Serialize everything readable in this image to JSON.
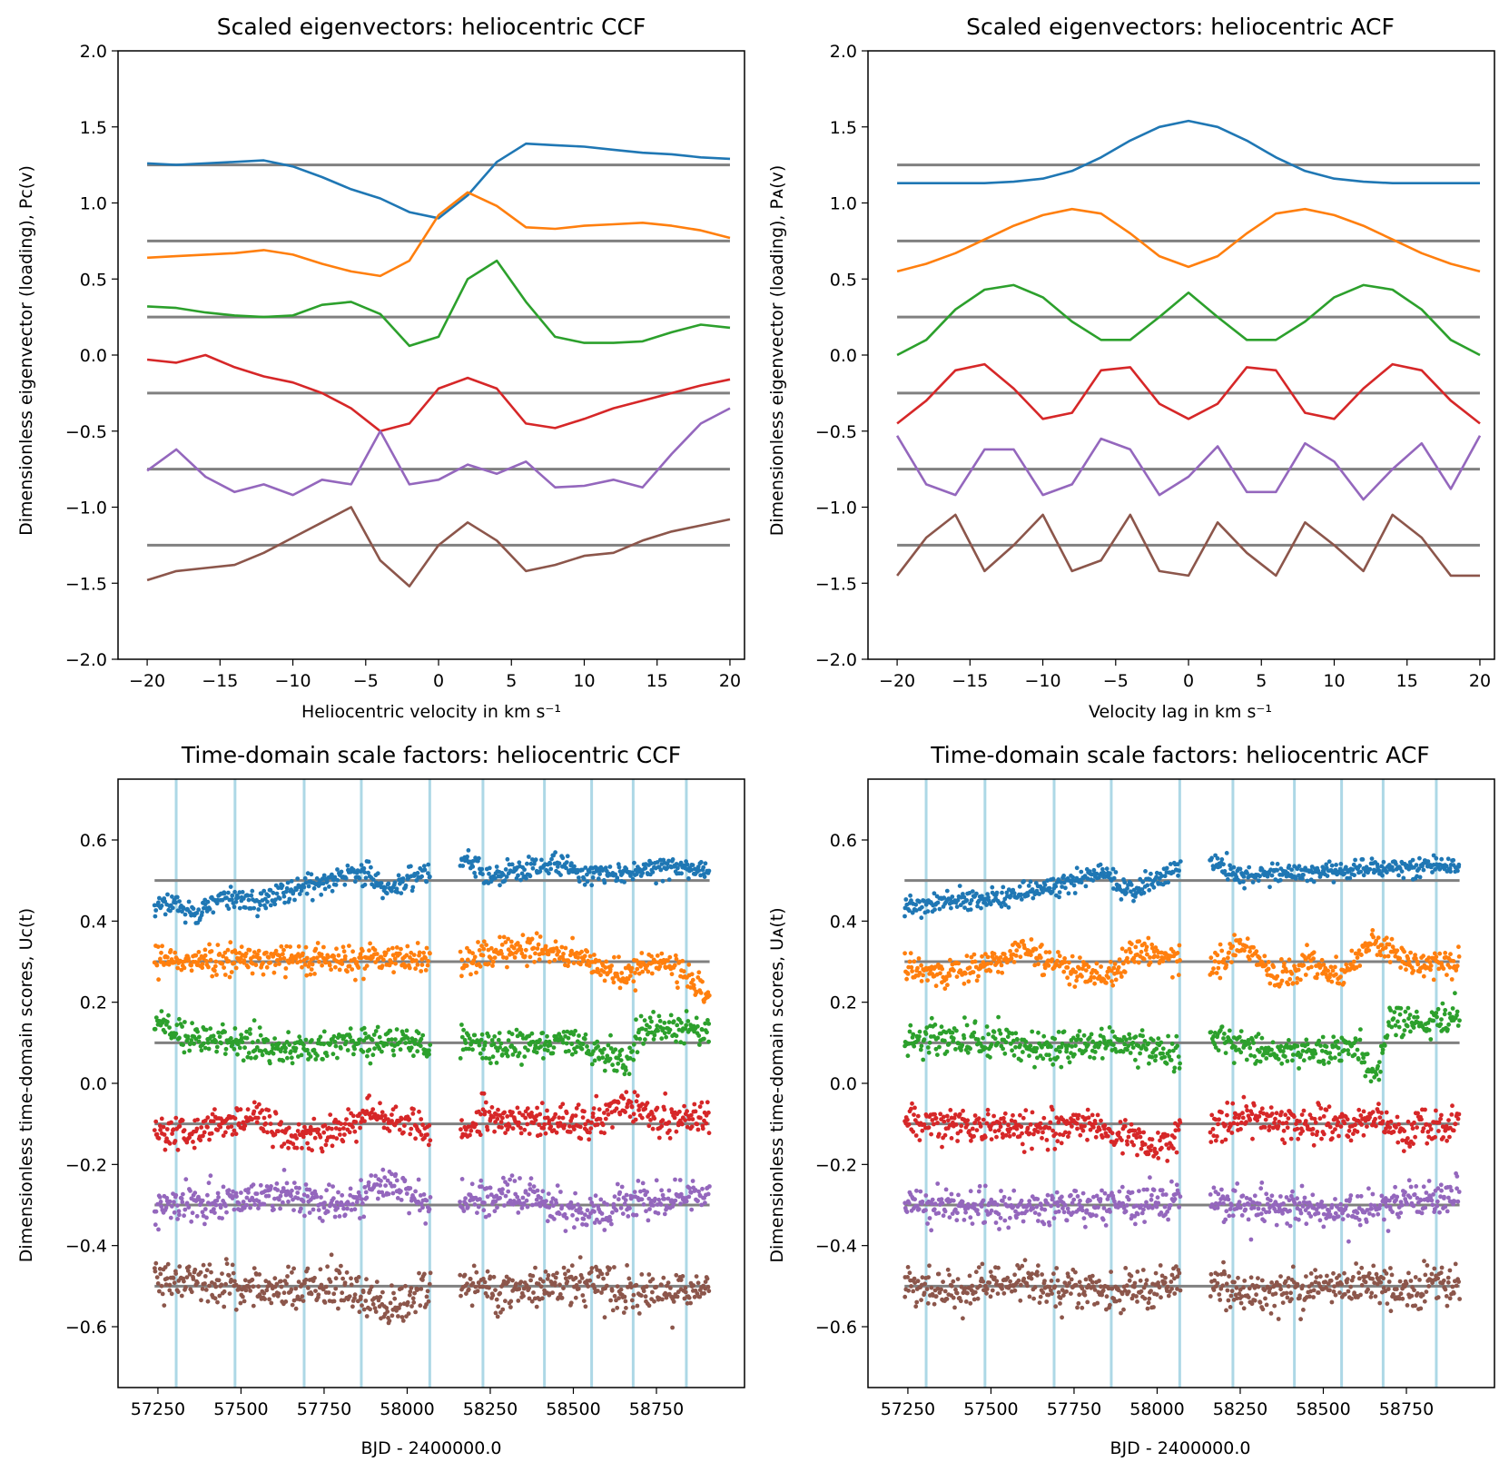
{
  "colors": {
    "series": [
      "#1f77b4",
      "#ff7f0e",
      "#2ca02c",
      "#d62728",
      "#9467bd",
      "#8c564b"
    ],
    "baseline": "#808080",
    "vline": "#add8e6",
    "frame": "#000000"
  },
  "chart_data": [
    {
      "type": "line",
      "title": "Scaled eigenvectors: heliocentric CCF",
      "xlabel": "Heliocentric velocity in km s⁻¹",
      "ylabel": "Dimensionless eigenvector (loading), Pᴄ(v)",
      "xlim": [
        -22,
        21
      ],
      "ylim": [
        -2.0,
        2.0
      ],
      "xticks": [
        -20,
        -15,
        -10,
        -5,
        0,
        5,
        10,
        15,
        20
      ],
      "xtick_labels": [
        "−20",
        "−15",
        "−10",
        "−5",
        "0",
        "5",
        "10",
        "15",
        "20"
      ],
      "yticks": [
        -2.0,
        -1.5,
        -1.0,
        -0.5,
        0.0,
        0.5,
        1.0,
        1.5,
        2.0
      ],
      "ytick_labels": [
        "−2.0",
        "−1.5",
        "−1.0",
        "−0.5",
        "0.0",
        "0.5",
        "1.0",
        "1.5",
        "2.0"
      ],
      "grid": false,
      "baselines": [
        1.25,
        0.75,
        0.25,
        -0.25,
        -0.75,
        -1.25
      ],
      "x": [
        -20,
        -18,
        -16,
        -14,
        -12,
        -10,
        -8,
        -6,
        -4,
        -2,
        0,
        2,
        4,
        6,
        8,
        10,
        12,
        14,
        16,
        18,
        20
      ],
      "series": [
        {
          "values": [
            1.26,
            1.25,
            1.26,
            1.27,
            1.28,
            1.24,
            1.17,
            1.09,
            1.03,
            0.94,
            0.9,
            1.05,
            1.27,
            1.39,
            1.38,
            1.37,
            1.35,
            1.33,
            1.32,
            1.3,
            1.29
          ]
        },
        {
          "values": [
            0.64,
            0.65,
            0.66,
            0.67,
            0.69,
            0.66,
            0.6,
            0.55,
            0.52,
            0.62,
            0.92,
            1.07,
            0.98,
            0.84,
            0.83,
            0.85,
            0.86,
            0.87,
            0.85,
            0.82,
            0.77
          ]
        },
        {
          "values": [
            0.32,
            0.31,
            0.28,
            0.26,
            0.25,
            0.26,
            0.33,
            0.35,
            0.27,
            0.06,
            0.12,
            0.5,
            0.62,
            0.35,
            0.12,
            0.08,
            0.08,
            0.09,
            0.15,
            0.2,
            0.18
          ]
        },
        {
          "values": [
            -0.03,
            -0.05,
            0.0,
            -0.08,
            -0.14,
            -0.18,
            -0.25,
            -0.35,
            -0.5,
            -0.45,
            -0.22,
            -0.15,
            -0.22,
            -0.45,
            -0.48,
            -0.42,
            -0.35,
            -0.3,
            -0.25,
            -0.2,
            -0.16
          ]
        },
        {
          "values": [
            -0.76,
            -0.62,
            -0.8,
            -0.9,
            -0.85,
            -0.92,
            -0.82,
            -0.85,
            -0.5,
            -0.85,
            -0.82,
            -0.72,
            -0.78,
            -0.7,
            -0.87,
            -0.86,
            -0.82,
            -0.87,
            -0.65,
            -0.45,
            -0.35
          ]
        },
        {
          "values": [
            -1.48,
            -1.42,
            -1.4,
            -1.38,
            -1.3,
            -1.2,
            -1.1,
            -1.0,
            -1.35,
            -1.52,
            -1.25,
            -1.1,
            -1.22,
            -1.42,
            -1.38,
            -1.32,
            -1.3,
            -1.22,
            -1.16,
            -1.12,
            -1.08
          ]
        }
      ]
    },
    {
      "type": "line",
      "title": "Scaled eigenvectors: heliocentric ACF",
      "xlabel": "Velocity lag in km s⁻¹",
      "ylabel": "Dimensionless eigenvector (loading), Pᴀ(v)",
      "xlim": [
        -22,
        21
      ],
      "ylim": [
        -2.0,
        2.0
      ],
      "xticks": [
        -20,
        -15,
        -10,
        -5,
        0,
        5,
        10,
        15,
        20
      ],
      "xtick_labels": [
        "−20",
        "−15",
        "−10",
        "−5",
        "0",
        "5",
        "10",
        "15",
        "20"
      ],
      "yticks": [
        -2.0,
        -1.5,
        -1.0,
        -0.5,
        0.0,
        0.5,
        1.0,
        1.5,
        2.0
      ],
      "ytick_labels": [
        "−2.0",
        "−1.5",
        "−1.0",
        "−0.5",
        "0.0",
        "0.5",
        "1.0",
        "1.5",
        "2.0"
      ],
      "grid": false,
      "baselines": [
        1.25,
        0.75,
        0.25,
        -0.25,
        -0.75,
        -1.25
      ],
      "x": [
        -20,
        -18,
        -16,
        -14,
        -12,
        -10,
        -8,
        -6,
        -4,
        -2,
        0,
        2,
        4,
        6,
        8,
        10,
        12,
        14,
        16,
        18,
        20
      ],
      "series": [
        {
          "values": [
            1.13,
            1.13,
            1.13,
            1.13,
            1.14,
            1.16,
            1.21,
            1.3,
            1.41,
            1.5,
            1.54,
            1.5,
            1.41,
            1.3,
            1.21,
            1.16,
            1.14,
            1.13,
            1.13,
            1.13,
            1.13
          ]
        },
        {
          "values": [
            0.55,
            0.6,
            0.67,
            0.76,
            0.85,
            0.92,
            0.96,
            0.93,
            0.8,
            0.65,
            0.58,
            0.65,
            0.8,
            0.93,
            0.96,
            0.92,
            0.85,
            0.76,
            0.67,
            0.6,
            0.55
          ]
        },
        {
          "values": [
            0.0,
            0.1,
            0.3,
            0.43,
            0.46,
            0.38,
            0.22,
            0.1,
            0.1,
            0.25,
            0.41,
            0.25,
            0.1,
            0.1,
            0.22,
            0.38,
            0.46,
            0.43,
            0.3,
            0.1,
            0.0
          ]
        },
        {
          "values": [
            -0.45,
            -0.3,
            -0.1,
            -0.06,
            -0.22,
            -0.42,
            -0.38,
            -0.1,
            -0.08,
            -0.32,
            -0.42,
            -0.32,
            -0.08,
            -0.1,
            -0.38,
            -0.42,
            -0.22,
            -0.06,
            -0.1,
            -0.3,
            -0.45
          ]
        },
        {
          "values": [
            -0.53,
            -0.85,
            -0.92,
            -0.62,
            -0.62,
            -0.92,
            -0.85,
            -0.55,
            -0.62,
            -0.92,
            -0.8,
            -0.6,
            -0.9,
            -0.9,
            -0.58,
            -0.7,
            -0.95,
            -0.75,
            -0.58,
            -0.88,
            -0.53
          ]
        },
        {
          "values": [
            -1.45,
            -1.2,
            -1.05,
            -1.42,
            -1.25,
            -1.05,
            -1.42,
            -1.35,
            -1.05,
            -1.42,
            -1.45,
            -1.1,
            -1.3,
            -1.45,
            -1.1,
            -1.25,
            -1.42,
            -1.05,
            -1.2,
            -1.45,
            -1.45
          ]
        }
      ]
    },
    {
      "type": "scatter",
      "title": "Time-domain scale factors: heliocentric CCF",
      "xlabel": "BJD - 2400000.0",
      "ylabel": "Dimensionless time-domain scores, Uᴄ(t)",
      "xlim": [
        57130,
        59015
      ],
      "ylim": [
        -0.75,
        0.75
      ],
      "xticks": [
        57250,
        57500,
        57750,
        58000,
        58250,
        58500,
        58750
      ],
      "xtick_labels": [
        "57250",
        "57500",
        "57750",
        "58000",
        "58250",
        "58500",
        "58750"
      ],
      "yticks": [
        -0.6,
        -0.4,
        -0.2,
        0.0,
        0.2,
        0.4,
        0.6
      ],
      "ytick_labels": [
        "−0.6",
        "−0.4",
        "−0.2",
        "0.0",
        "0.2",
        "0.4",
        "0.6"
      ],
      "grid": false,
      "baselines": [
        0.5,
        0.3,
        0.1,
        -0.1,
        -0.3,
        -0.5
      ],
      "vlines": [
        57305,
        57482,
        57690,
        57862,
        58068,
        58228,
        58413,
        58555,
        58680,
        58840
      ],
      "observing_seasons": [
        [
          57240,
          58070
        ],
        [
          58160,
          58910
        ]
      ],
      "series": [
        {
          "mean_x": [
            57240,
            57300,
            57350,
            57450,
            57550,
            57650,
            57750,
            57850,
            57950,
            58070,
            58160,
            58250,
            58350,
            58450,
            58550,
            58650,
            58750,
            58910
          ],
          "mean_y": [
            0.43,
            0.45,
            0.42,
            0.46,
            0.45,
            0.48,
            0.5,
            0.52,
            0.48,
            0.53,
            0.56,
            0.51,
            0.53,
            0.54,
            0.52,
            0.52,
            0.53,
            0.53
          ],
          "scatter": 0.015
        },
        {
          "mean_x": [
            57240,
            57400,
            57600,
            57800,
            58000,
            58070,
            58160,
            58300,
            58450,
            58550,
            58650,
            58750,
            58850,
            58910
          ],
          "mean_y": [
            0.3,
            0.3,
            0.31,
            0.3,
            0.31,
            0.3,
            0.29,
            0.33,
            0.33,
            0.3,
            0.27,
            0.3,
            0.25,
            0.21
          ],
          "scatter": 0.018
        },
        {
          "mean_x": [
            57240,
            57300,
            57500,
            57650,
            57800,
            58000,
            58070,
            58160,
            58300,
            58500,
            58600,
            58660,
            58700,
            58800,
            58910
          ],
          "mean_y": [
            0.15,
            0.12,
            0.1,
            0.08,
            0.1,
            0.1,
            0.09,
            0.11,
            0.09,
            0.1,
            0.07,
            0.04,
            0.14,
            0.13,
            0.14
          ],
          "scatter": 0.02
        },
        {
          "mean_x": [
            57240,
            57350,
            57550,
            57650,
            57800,
            57900,
            58070,
            58160,
            58250,
            58400,
            58550,
            58650,
            58750,
            58910
          ],
          "mean_y": [
            -0.12,
            -0.12,
            -0.08,
            -0.13,
            -0.12,
            -0.07,
            -0.12,
            -0.12,
            -0.08,
            -0.1,
            -0.1,
            -0.05,
            -0.08,
            -0.09
          ],
          "scatter": 0.02
        },
        {
          "mean_x": [
            57240,
            57400,
            57600,
            57800,
            57950,
            58070,
            58160,
            58300,
            58450,
            58550,
            58650,
            58750,
            58910
          ],
          "mean_y": [
            -0.3,
            -0.3,
            -0.27,
            -0.3,
            -0.25,
            -0.3,
            -0.28,
            -0.28,
            -0.3,
            -0.33,
            -0.28,
            -0.3,
            -0.27
          ],
          "scatter": 0.022
        },
        {
          "mean_x": [
            57240,
            57400,
            57600,
            57800,
            57950,
            58070,
            58160,
            58300,
            58450,
            58550,
            58650,
            58750,
            58910
          ],
          "mean_y": [
            -0.48,
            -0.49,
            -0.51,
            -0.5,
            -0.56,
            -0.5,
            -0.49,
            -0.52,
            -0.5,
            -0.49,
            -0.51,
            -0.52,
            -0.5
          ],
          "scatter": 0.025
        }
      ]
    },
    {
      "type": "scatter",
      "title": "Time-domain scale factors: heliocentric ACF",
      "xlabel": "BJD - 2400000.0",
      "ylabel": "Dimensionless time-domain scores, Uᴀ(t)",
      "xlim": [
        57130,
        59015
      ],
      "ylim": [
        -0.75,
        0.75
      ],
      "xticks": [
        57250,
        57500,
        57750,
        58000,
        58250,
        58500,
        58750
      ],
      "xtick_labels": [
        "57250",
        "57500",
        "57750",
        "58000",
        "58250",
        "58500",
        "58750"
      ],
      "yticks": [
        -0.6,
        -0.4,
        -0.2,
        0.0,
        0.2,
        0.4,
        0.6
      ],
      "ytick_labels": [
        "−0.6",
        "−0.4",
        "−0.2",
        "0.0",
        "0.2",
        "0.4",
        "0.6"
      ],
      "grid": false,
      "baselines": [
        0.5,
        0.3,
        0.1,
        -0.1,
        -0.3,
        -0.5
      ],
      "vlines": [
        57305,
        57482,
        57690,
        57862,
        58068,
        58228,
        58413,
        58555,
        58680,
        58840
      ],
      "observing_seasons": [
        [
          57240,
          58070
        ],
        [
          58160,
          58910
        ]
      ],
      "series": [
        {
          "mean_x": [
            57240,
            57300,
            57400,
            57550,
            57700,
            57800,
            57850,
            57900,
            58000,
            58070,
            58160,
            58250,
            58400,
            58550,
            58650,
            58750,
            58910
          ],
          "mean_y": [
            0.43,
            0.44,
            0.45,
            0.46,
            0.49,
            0.51,
            0.52,
            0.47,
            0.5,
            0.53,
            0.55,
            0.51,
            0.52,
            0.52,
            0.53,
            0.53,
            0.54
          ],
          "scatter": 0.012
        },
        {
          "mean_x": [
            57240,
            57350,
            57500,
            57600,
            57750,
            57850,
            57950,
            58070,
            58160,
            58250,
            58350,
            58450,
            58550,
            58650,
            58750,
            58910
          ],
          "mean_y": [
            0.28,
            0.27,
            0.3,
            0.33,
            0.28,
            0.26,
            0.33,
            0.3,
            0.27,
            0.35,
            0.26,
            0.3,
            0.26,
            0.35,
            0.3,
            0.29
          ],
          "scatter": 0.018
        },
        {
          "mean_x": [
            57240,
            57400,
            57600,
            57700,
            57850,
            57950,
            58070,
            58160,
            58300,
            58500,
            58600,
            58660,
            58700,
            58800,
            58910
          ],
          "mean_y": [
            0.1,
            0.11,
            0.09,
            0.08,
            0.1,
            0.1,
            0.07,
            0.12,
            0.08,
            0.08,
            0.09,
            0.01,
            0.16,
            0.14,
            0.17
          ],
          "scatter": 0.02
        },
        {
          "mean_x": [
            57240,
            57400,
            57600,
            57800,
            57900,
            58000,
            58070,
            58160,
            58300,
            58450,
            58550,
            58650,
            58750,
            58910
          ],
          "mean_y": [
            -0.1,
            -0.1,
            -0.11,
            -0.1,
            -0.13,
            -0.16,
            -0.12,
            -0.11,
            -0.08,
            -0.1,
            -0.1,
            -0.09,
            -0.12,
            -0.1
          ],
          "scatter": 0.022
        },
        {
          "mean_x": [
            57240,
            57400,
            57600,
            57800,
            58000,
            58070,
            58160,
            58300,
            58450,
            58550,
            58650,
            58750,
            58910
          ],
          "mean_y": [
            -0.3,
            -0.3,
            -0.31,
            -0.3,
            -0.29,
            -0.28,
            -0.29,
            -0.3,
            -0.31,
            -0.32,
            -0.3,
            -0.29,
            -0.27
          ],
          "scatter": 0.022
        },
        {
          "mean_x": [
            57240,
            57400,
            57600,
            57800,
            57950,
            58070,
            58160,
            58300,
            58450,
            58550,
            58650,
            58750,
            58910
          ],
          "mean_y": [
            -0.5,
            -0.51,
            -0.49,
            -0.51,
            -0.52,
            -0.49,
            -0.5,
            -0.52,
            -0.51,
            -0.5,
            -0.49,
            -0.51,
            -0.49
          ],
          "scatter": 0.025
        }
      ]
    }
  ]
}
